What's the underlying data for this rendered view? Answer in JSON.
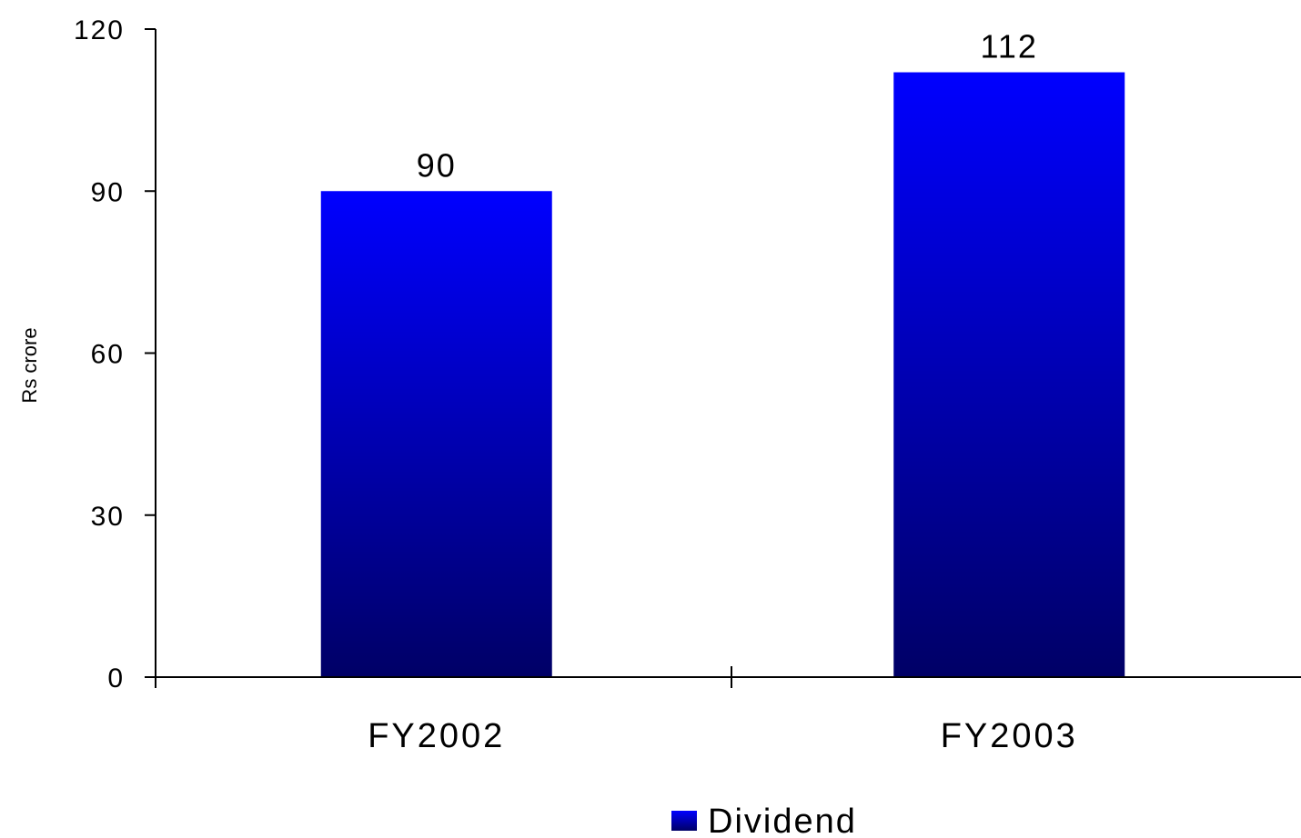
{
  "chart_data": {
    "type": "bar",
    "title": "",
    "xlabel": "",
    "ylabel": "Rs crore",
    "categories": [
      "FY2002",
      "FY2003"
    ],
    "series": [
      {
        "name": "Dividend",
        "values": [
          90,
          112
        ]
      }
    ],
    "data_labels": [
      "90",
      "112"
    ],
    "ylim": [
      0,
      120
    ],
    "yticks": [
      0,
      30,
      60,
      90,
      120
    ],
    "ytick_labels": [
      "0",
      "30",
      "60",
      "90",
      "120"
    ],
    "grid": false,
    "legend_position": "bottom",
    "colors": {
      "bar_top": "#0000ff",
      "bar_bottom": "#000066"
    }
  }
}
